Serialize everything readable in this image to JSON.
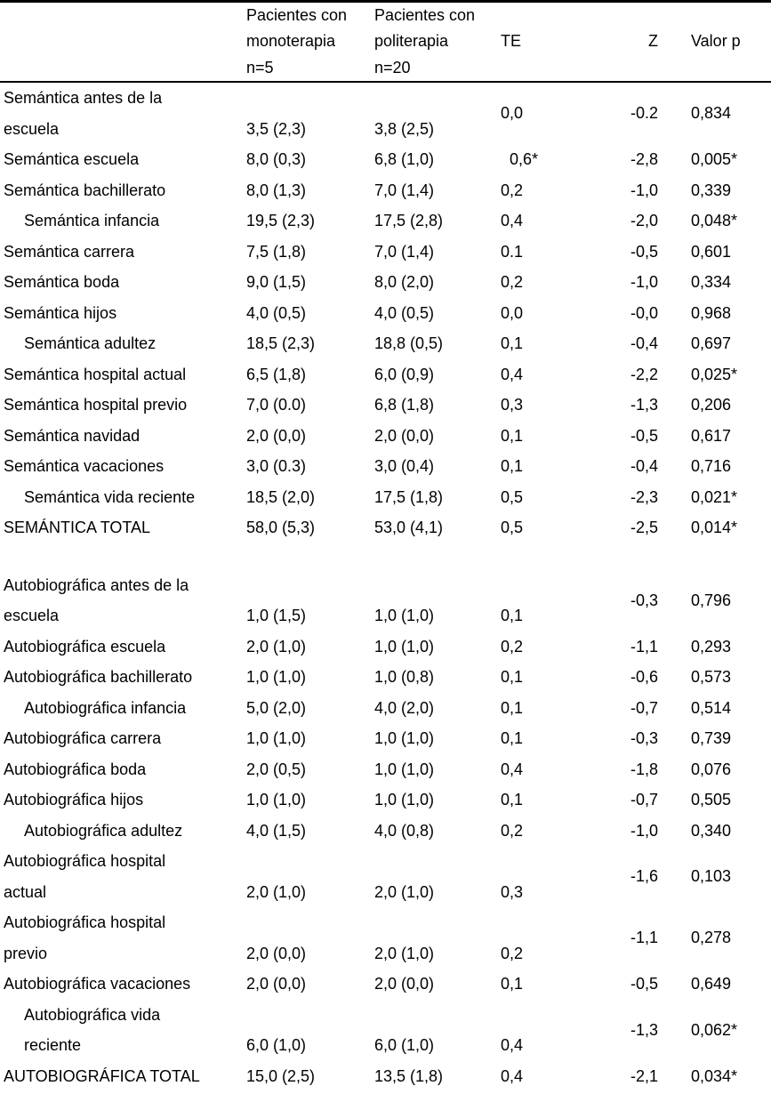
{
  "table": {
    "columns": {
      "label": "",
      "monoterapia": "Pacientes con\nmonoterapia\nn=5",
      "politerapia": "Pacientes con\npoliterapia\nn=20",
      "te": "TE",
      "z": "Z",
      "p": "Valor p"
    },
    "sections": [
      {
        "id": "semantica",
        "rows": [
          {
            "label": "Semántica antes de la\nescuela",
            "wrap": true,
            "te_middle": true,
            "mono": "3,5 (2,3)",
            "poli": "3,8 (2,5)",
            "te": "0,0",
            "z": "-0.2",
            "p": "0,834"
          },
          {
            "label": "Semántica escuela",
            "mono": "8,0 (0,3)",
            "poli": "6,8 (1,0)",
            "te": "  0,6*",
            "z": "-2,8",
            "p": "0,005*"
          },
          {
            "label": "Semántica bachillerato",
            "mono": "8,0 (1,3)",
            "poli": "7,0 (1,4)",
            "te": "0,2",
            "z": "-1,0",
            "p": "0,339"
          },
          {
            "label": "Semántica infancia",
            "indent": true,
            "mono": "19,5 (2,3)",
            "poli": "17,5 (2,8)",
            "te": "0,4",
            "z": "-2,0",
            "p": "0,048*"
          },
          {
            "label": "Semántica carrera",
            "mono": "7,5 (1,8)",
            "poli": "7,0 (1,4)",
            "te": "0.1",
            "z": "-0,5",
            "p": "0,601"
          },
          {
            "label": "Semántica boda",
            "mono": "9,0 (1,5)",
            "poli": "8,0 (2,0)",
            "te": "0,2",
            "z": "-1,0",
            "p": "0,334"
          },
          {
            "label": "Semántica hijos",
            "mono": "4,0 (0,5)",
            "poli": "4,0 (0,5)",
            "te": "0,0",
            "z": "-0,0",
            "p": "0,968"
          },
          {
            "label": "Semántica adultez",
            "indent": true,
            "mono": "18,5 (2,3)",
            "poli": "18,8 (0,5)",
            "te": "0,1",
            "z": "-0,4",
            "p": "0,697"
          },
          {
            "label": "Semántica hospital actual",
            "mono": "6,5 (1,8)",
            "poli": "6,0 (0,9)",
            "te": "0,4",
            "z": "-2,2",
            "p": "0,025*"
          },
          {
            "label": "Semántica hospital previo",
            "mono": "7,0 (0.0)",
            "poli": "6,8 (1,8)",
            "te": "0,3",
            "z": "-1,3",
            "p": "0,206"
          },
          {
            "label": "Semántica navidad",
            "mono": "2,0 (0,0)",
            "poli": "2,0 (0,0)",
            "te": "0,1",
            "z": "-0,5",
            "p": "0,617"
          },
          {
            "label": "Semántica vacaciones",
            "mono": "3,0 (0.3)",
            "poli": "3,0 (0,4)",
            "te": "0,1",
            "z": "-0,4",
            "p": "0,716"
          },
          {
            "label": "Semántica vida reciente",
            "indent": true,
            "mono": "18,5 (2,0)",
            "poli": "17,5 (1,8)",
            "te": "0,5",
            "z": "-2,3",
            "p": "0,021*"
          },
          {
            "label": "SEMÁNTICA TOTAL",
            "mono": "58,0 (5,3)",
            "poli": "53,0 (4,1)",
            "te": "0,5",
            "z": "-2,5",
            "p": "0,014*"
          }
        ]
      },
      {
        "id": "autobiografica",
        "rows": [
          {
            "label": "Autobiográfica antes de la\nescuela",
            "wrap": true,
            "mono": "1,0 (1,5)",
            "poli": "1,0 (1,0)",
            "te": "0,1",
            "z": "-0,3",
            "p": "0,796"
          },
          {
            "label": "Autobiográfica escuela",
            "mono": "2,0 (1,0)",
            "poli": "1,0 (1,0)",
            "te": "0,2",
            "z": "-1,1",
            "p": "0,293"
          },
          {
            "label": "Autobiográfica bachillerato",
            "mono": "1,0 (1,0)",
            "poli": "1,0 (0,8)",
            "te": "0,1",
            "z": "-0,6",
            "p": "0,573"
          },
          {
            "label": "Autobiográfica infancia",
            "indent": true,
            "mono": "5,0 (2,0)",
            "poli": "4,0 (2,0)",
            "te": "0,1",
            "z": "-0,7",
            "p": "0,514"
          },
          {
            "label": "Autobiográfica carrera",
            "mono": "1,0 (1,0)",
            "poli": "1,0 (1,0)",
            "te": "0,1",
            "z": "-0,3",
            "p": "0,739"
          },
          {
            "label": "Autobiográfica boda",
            "mono": "2,0 (0,5)",
            "poli": "1,0 (1,0)",
            "te": "0,4",
            "z": "-1,8",
            "p": "0,076"
          },
          {
            "label": "Autobiográfica hijos",
            "mono": "1,0 (1,0)",
            "poli": "1,0 (1,0)",
            "te": "0,1",
            "z": "-0,7",
            "p": "0,505"
          },
          {
            "label": "Autobiográfica adultez",
            "indent": true,
            "mono": "4,0 (1,5)",
            "poli": "4,0 (0,8)",
            "te": "0,2",
            "z": "-1,0",
            "p": "0,340"
          },
          {
            "label": "Autobiográfica hospital\nactual",
            "wrap": true,
            "mono": "2,0 (1,0)",
            "poli": "2,0 (1,0)",
            "te": "0,3",
            "z": "-1,6",
            "p": "0,103"
          },
          {
            "label": "Autobiográfica hospital\nprevio",
            "wrap": true,
            "mono": "2,0 (0,0)",
            "poli": "2,0 (1,0)",
            "te": "0,2",
            "z": "-1,1",
            "p": "0,278"
          },
          {
            "label": "Autobiográfica vacaciones",
            "mono": "2,0 (0,0)",
            "poli": "2,0 (0,0)",
            "te": "0,1",
            "z": "-0,5",
            "p": "0,649"
          },
          {
            "label": "Autobiográfica vida\nreciente",
            "indent": true,
            "wrap": true,
            "mono": "6,0 (1,0)",
            "poli": "6,0 (1,0)",
            "te": "0,4",
            "z": "-1,3",
            "p": "0,062*"
          },
          {
            "label": "AUTOBIOGRÁFICA TOTAL",
            "mono": "15,0 (2,5)",
            "poli": "13,5 (1,8)",
            "te": "0,4",
            "z": "-2,1",
            "p": "0,034*"
          }
        ]
      }
    ]
  },
  "colors": {
    "text": "#000000",
    "border": "#000000",
    "background": "#ffffff"
  }
}
